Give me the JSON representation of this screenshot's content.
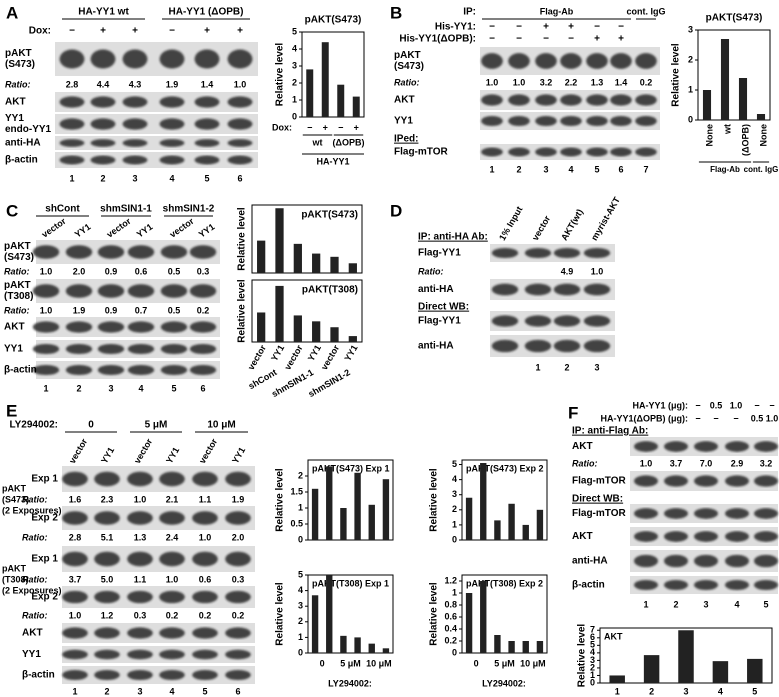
{
  "panels": [
    {
      "letter": "A",
      "rows": [
        {
          "groups": [
            "HA-YY1 wt",
            "HA-YY1 (ΔOPB)"
          ]
        },
        {
          "label": "Dox:",
          "signs": [
            "−",
            "+",
            "+",
            "−",
            "+",
            "+"
          ]
        },
        {
          "blot": [
            "pAKT",
            "(S473)"
          ]
        },
        {
          "label": "Ratio:",
          "ratios": [
            "2.8",
            "4.4",
            "4.3",
            "1.9",
            "1.4",
            "1.0"
          ]
        },
        {
          "blot": [
            "AKT"
          ]
        },
        {
          "blot": [
            "YY1",
            "endo-YY1"
          ]
        },
        {
          "blot": [
            "anti-HA"
          ]
        },
        {
          "blot": [
            "β-actin"
          ]
        },
        {
          "lanes": [
            1,
            2,
            3,
            4,
            5,
            6
          ]
        }
      ],
      "charts": [
        {
          "type": "bar",
          "title": "pAKT(S473)",
          "ylabel": "Relative level",
          "ylim": [
            0,
            5
          ],
          "yticks": [
            0,
            1,
            2,
            3,
            4,
            5
          ],
          "values": [
            2.8,
            4.4,
            1.9,
            1.2
          ],
          "categories": [
            "−",
            "+",
            "−",
            "+"
          ],
          "xlabel": "Dox:",
          "groups": [
            "wt",
            "(ΔOPB)"
          ],
          "group_title": "HA-YY1"
        }
      ]
    },
    {
      "letter": "B",
      "rows": [
        {
          "label": "IP:",
          "groups": [
            "Flag-Ab",
            "cont. IgG"
          ]
        },
        {
          "label": "His-YY1:",
          "signs": [
            "−",
            "−",
            "+",
            "+",
            "−",
            "−"
          ]
        },
        {
          "label": "His-YY1(ΔOPB):",
          "signs": [
            "−",
            "−",
            "−",
            "−",
            "+",
            "+"
          ]
        },
        {
          "blot": [
            "pAKT",
            "(S473)"
          ]
        },
        {
          "label": "Ratio:",
          "ratios": [
            "1.0",
            "1.0",
            "3.2",
            "2.2",
            "1.3",
            "1.4",
            "0.2"
          ]
        },
        {
          "blot": [
            "AKT"
          ]
        },
        {
          "blot": [
            "YY1"
          ]
        },
        {
          "heading": "IPed:"
        },
        {
          "blot": [
            "Flag-mTOR"
          ]
        },
        {
          "lanes": [
            1,
            2,
            3,
            4,
            5,
            6,
            7
          ]
        }
      ],
      "charts": [
        {
          "type": "bar",
          "title": "pAKT(S473)",
          "ylabel": "Relative level",
          "ylim": [
            0,
            3
          ],
          "yticks": [
            0,
            1,
            2,
            3
          ],
          "values": [
            1.0,
            2.7,
            1.4,
            0.2
          ],
          "categories": [
            "None",
            "wt",
            "(ΔOPB)",
            "None"
          ],
          "groups": [
            "Flag-Ab",
            "cont. IgG"
          ]
        }
      ]
    },
    {
      "letter": "C",
      "rows": [
        {
          "groups": [
            "shCont",
            "shmSIN1-1",
            "shmSIN1-2"
          ]
        },
        {
          "columns": [
            "vector",
            "YY1",
            "vector",
            "YY1",
            "vector",
            "YY1"
          ]
        },
        {
          "blot": [
            "pAKT",
            "(S473)"
          ]
        },
        {
          "label": "Ratio:",
          "ratios": [
            "1.0",
            "2.0",
            "0.9",
            "0.6",
            "0.5",
            "0.3"
          ]
        },
        {
          "blot": [
            "pAKT",
            "(T308)"
          ]
        },
        {
          "label": "Ratio:",
          "ratios": [
            "1.0",
            "1.9",
            "0.9",
            "0.7",
            "0.5",
            "0.2"
          ]
        },
        {
          "blot": [
            "AKT"
          ]
        },
        {
          "blot": [
            "YY1"
          ]
        },
        {
          "blot": [
            "β-actin"
          ]
        },
        {
          "lanes": [
            1,
            2,
            3,
            4,
            5,
            6
          ]
        }
      ],
      "charts": [
        {
          "type": "bar",
          "title": "pAKT(S473)",
          "ylabel": "Relative level",
          "ylim": [
            0,
            2.1
          ],
          "values": [
            1.0,
            2.0,
            0.9,
            0.6,
            0.5,
            0.3
          ]
        },
        {
          "type": "bar",
          "title": "pAKT(T308)",
          "ylabel": "Relative level",
          "ylim": [
            0,
            2.1
          ],
          "values": [
            1.0,
            1.9,
            0.9,
            0.7,
            0.5,
            0.2
          ],
          "categories": [
            "vector",
            "YY1",
            "vector",
            "YY1",
            "vector",
            "YY1"
          ],
          "groups": [
            "shCont",
            "shmSIN1-1",
            "shmSIN1-2"
          ]
        }
      ]
    },
    {
      "letter": "D",
      "rows": [
        {
          "columns": [
            "1% Input",
            "vector",
            "AKT(wt)",
            "myrist-AKT"
          ]
        },
        {
          "heading": "IP: anti-HA Ab:"
        },
        {
          "blot": [
            "Flag-YY1"
          ]
        },
        {
          "label": "Ratio:",
          "ratios": [
            null,
            null,
            "4.9",
            "1.0"
          ]
        },
        {
          "blot": [
            "anti-HA"
          ]
        },
        {
          "heading": "Direct WB:"
        },
        {
          "blot": [
            "Flag-YY1"
          ]
        },
        {
          "blot": [
            "anti-HA"
          ]
        },
        {
          "lanes": [
            null,
            1,
            2,
            3
          ]
        }
      ],
      "charts": []
    },
    {
      "letter": "E",
      "rows": [
        {
          "label": "LY294002:",
          "groups": [
            "0",
            "5 μM",
            "10 μM"
          ]
        },
        {
          "columns": [
            "vector",
            "YY1",
            "vector",
            "YY1",
            "vector",
            "YY1"
          ]
        },
        {
          "side": [
            "pAKT",
            "(S473)",
            "(2 Exposures)"
          ]
        },
        {
          "blot": [
            "Exp 1"
          ]
        },
        {
          "label": "Ratio:",
          "ratios": [
            "1.6",
            "2.3",
            "1.0",
            "2.1",
            "1.1",
            "1.9"
          ]
        },
        {
          "blot": [
            "Exp 2"
          ]
        },
        {
          "label": "Ratio:",
          "ratios": [
            "2.8",
            "5.1",
            "1.3",
            "2.4",
            "1.0",
            "2.0"
          ]
        },
        {
          "side": [
            "pAKT",
            "(T308)",
            "(2 Exposures)"
          ]
        },
        {
          "blot": [
            "Exp 1"
          ]
        },
        {
          "label": "Ratio:",
          "ratios": [
            "3.7",
            "5.0",
            "1.1",
            "1.0",
            "0.6",
            "0.3"
          ]
        },
        {
          "blot": [
            "Exp 2"
          ]
        },
        {
          "label": "Ratio:",
          "ratios": [
            "1.0",
            "1.2",
            "0.3",
            "0.2",
            "0.2",
            "0.2"
          ]
        },
        {
          "blot": [
            "AKT"
          ]
        },
        {
          "blot": [
            "YY1"
          ]
        },
        {
          "blot": [
            "β-actin"
          ]
        },
        {
          "lanes": [
            1,
            2,
            3,
            4,
            5,
            6
          ]
        }
      ],
      "charts": [
        {
          "type": "bar",
          "title": "pAKT(S473)  Exp 1",
          "ylabel": "Relative level",
          "ylim": [
            0,
            2.5
          ],
          "yticks": [
            0,
            0.5,
            1,
            1.5,
            2
          ],
          "values": [
            1.6,
            2.3,
            1.0,
            2.1,
            1.1,
            1.9
          ]
        },
        {
          "type": "bar",
          "title": "pAKT(S473)  Exp 2",
          "ylabel": "Relative level",
          "ylim": [
            0,
            5.3
          ],
          "yticks": [
            0,
            1,
            2,
            3,
            4,
            5
          ],
          "values": [
            2.8,
            5.1,
            1.3,
            2.4,
            1.0,
            2.0
          ]
        },
        {
          "type": "bar",
          "title": "pAKT(T308)  Exp 1",
          "ylabel": "Relative level",
          "ylim": [
            0,
            5
          ],
          "yticks": [
            0,
            1,
            2,
            3,
            4,
            5
          ],
          "values": [
            3.7,
            5.0,
            1.1,
            1.0,
            0.6,
            0.3
          ],
          "groups": [
            "0",
            "5 μM",
            "10 μM"
          ],
          "xlabel": "LY294002:"
        },
        {
          "type": "bar",
          "title": "pAKT(T308)  Exp 2",
          "ylabel": "Relative level",
          "ylim": [
            0,
            1.3
          ],
          "yticks": [
            0,
            0.2,
            0.4,
            0.6,
            0.8,
            1,
            1.2
          ],
          "values": [
            1.0,
            1.2,
            0.3,
            0.2,
            0.2,
            0.2
          ],
          "groups": [
            "0",
            "5 μM",
            "10 μM"
          ],
          "xlabel": "LY294002:"
        }
      ]
    },
    {
      "letter": "F",
      "rows": [
        {
          "label": "HA-YY1 (μg):",
          "signs": [
            "−",
            "0.5",
            "1.0",
            "−",
            "−"
          ]
        },
        {
          "label": "HA-YY1(ΔOPB) (μg):",
          "signs": [
            "−",
            "−",
            "−",
            "0.5",
            "1.0"
          ]
        },
        {
          "heading": "IP: anti-Flag Ab:"
        },
        {
          "blot": [
            "AKT"
          ]
        },
        {
          "label": "Ratio:",
          "ratios": [
            "1.0",
            "3.7",
            "7.0",
            "2.9",
            "3.2"
          ]
        },
        {
          "blot": [
            "Flag-mTOR"
          ]
        },
        {
          "heading": "Direct WB:"
        },
        {
          "blot": [
            "Flag-mTOR"
          ]
        },
        {
          "blot": [
            "AKT"
          ]
        },
        {
          "blot": [
            "anti-HA"
          ]
        },
        {
          "blot": [
            "β-actin"
          ]
        },
        {
          "lanes": [
            1,
            2,
            3,
            4,
            5
          ]
        }
      ],
      "charts": [
        {
          "type": "bar",
          "title": "AKT",
          "ylabel": "Relative level",
          "ylim": [
            0,
            7.3
          ],
          "yticks": [
            0,
            1,
            2,
            3,
            4,
            5,
            6,
            7
          ],
          "values": [
            1.0,
            3.7,
            7.0,
            2.9,
            3.2
          ],
          "categories": [
            1,
            2,
            3,
            4,
            5
          ]
        }
      ]
    }
  ]
}
